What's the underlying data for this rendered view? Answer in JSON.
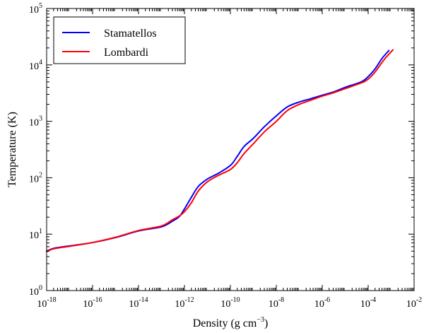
{
  "chart_data": {
    "type": "line",
    "title": "",
    "xlabel": {
      "base": "Density (g cm",
      "exp": "−3",
      "close": ")"
    },
    "ylabel": "Temperature (K)",
    "x_scale": "log",
    "y_scale": "log",
    "xlim": [
      1e-18,
      0.01
    ],
    "ylim": [
      1,
      100000
    ],
    "x_ticks": [
      {
        "value": 1e-18,
        "base": "10",
        "exp": "-18"
      },
      {
        "value": 1e-16,
        "base": "10",
        "exp": "-16"
      },
      {
        "value": 1e-14,
        "base": "10",
        "exp": "-14"
      },
      {
        "value": 1e-12,
        "base": "10",
        "exp": "-12"
      },
      {
        "value": 1e-10,
        "base": "10",
        "exp": "-10"
      },
      {
        "value": 1e-08,
        "base": "10",
        "exp": "-8"
      },
      {
        "value": 1e-06,
        "base": "10",
        "exp": "-6"
      },
      {
        "value": 0.0001,
        "base": "10",
        "exp": "-4"
      },
      {
        "value": 0.01,
        "base": "10",
        "exp": "-2"
      }
    ],
    "y_ticks": [
      {
        "value": 1,
        "base": "10",
        "exp": "0"
      },
      {
        "value": 10,
        "base": "10",
        "exp": "1"
      },
      {
        "value": 100,
        "base": "10",
        "exp": "2"
      },
      {
        "value": 1000,
        "base": "10",
        "exp": "3"
      },
      {
        "value": 10000,
        "base": "10",
        "exp": "4"
      },
      {
        "value": 100000,
        "base": "10",
        "exp": "5"
      }
    ],
    "grid": false,
    "legend_position": "top-left",
    "series": [
      {
        "name": "Stamatellos",
        "color": "#0000ff",
        "points": [
          [
            1e-18,
            5.0
          ],
          [
            2e-18,
            5.6
          ],
          [
            1e-17,
            6.2
          ],
          [
            1e-16,
            7.1
          ],
          [
            1e-15,
            8.7
          ],
          [
            1e-14,
            11.4
          ],
          [
            1e-13,
            13.5
          ],
          [
            3e-13,
            17.0
          ],
          [
            6e-13,
            20.5
          ],
          [
            1e-12,
            28
          ],
          [
            2e-12,
            45
          ],
          [
            4e-12,
            70
          ],
          [
            1e-11,
            95
          ],
          [
            3e-11,
            120
          ],
          [
            1e-10,
            165
          ],
          [
            2e-10,
            240
          ],
          [
            4e-10,
            360
          ],
          [
            1e-09,
            500
          ],
          [
            3e-09,
            800
          ],
          [
            1e-08,
            1250
          ],
          [
            3e-08,
            1800
          ],
          [
            1e-07,
            2200
          ],
          [
            3e-07,
            2500
          ],
          [
            1e-06,
            2900
          ],
          [
            3e-06,
            3300
          ],
          [
            1e-05,
            4000
          ],
          [
            5e-05,
            5000
          ],
          [
            0.0001,
            6200
          ],
          [
            0.0002,
            8500
          ],
          [
            0.0004,
            13000
          ],
          [
            0.0008,
            18000
          ]
        ]
      },
      {
        "name": "Lombardi",
        "color": "#ff0000",
        "points": [
          [
            1e-18,
            4.9
          ],
          [
            2e-18,
            5.5
          ],
          [
            1e-17,
            6.1
          ],
          [
            1e-16,
            7.1
          ],
          [
            1e-15,
            8.8
          ],
          [
            1e-14,
            11.6
          ],
          [
            1e-13,
            14.0
          ],
          [
            3e-13,
            18.0
          ],
          [
            6e-13,
            21.0
          ],
          [
            1e-12,
            25
          ],
          [
            2e-12,
            36
          ],
          [
            4e-12,
            58
          ],
          [
            1e-11,
            85
          ],
          [
            3e-11,
            110
          ],
          [
            1e-10,
            140
          ],
          [
            2e-10,
            185
          ],
          [
            4e-10,
            270
          ],
          [
            1e-09,
            400
          ],
          [
            3e-09,
            650
          ],
          [
            1e-08,
            1000
          ],
          [
            3e-08,
            1550
          ],
          [
            1e-07,
            2000
          ],
          [
            3e-07,
            2350
          ],
          [
            1e-06,
            2800
          ],
          [
            3e-06,
            3200
          ],
          [
            1e-05,
            3800
          ],
          [
            5e-05,
            4800
          ],
          [
            0.0001,
            5600
          ],
          [
            0.0002,
            7500
          ],
          [
            0.0005,
            12500
          ],
          [
            0.0012,
            18500
          ]
        ]
      }
    ]
  }
}
